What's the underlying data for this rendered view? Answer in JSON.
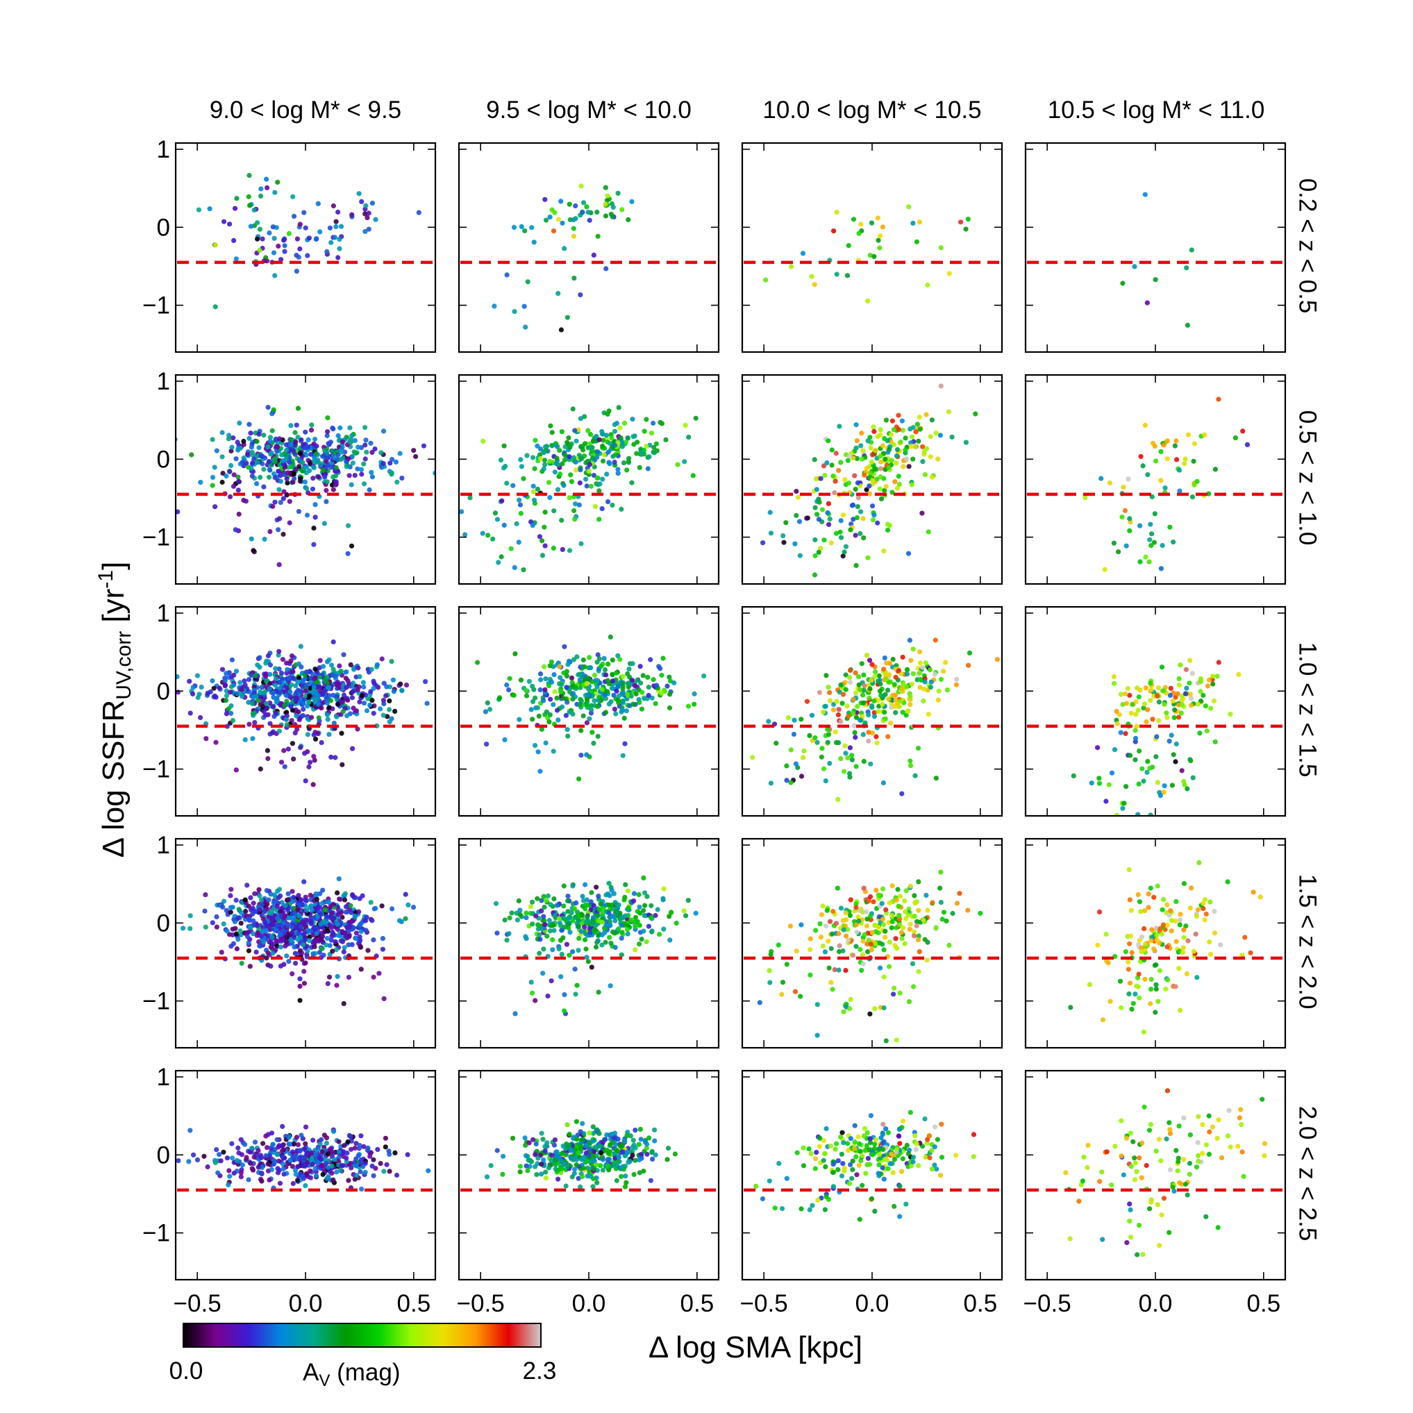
{
  "chart_data": {
    "type": "scatter",
    "layout": "5 rows x 4 columns grid of scatter panels",
    "xlabel": "Δ log SMA [kpc]",
    "ylabel": "Δ log SSFR_UV,corr [yr^-1]",
    "ylabel_parts": {
      "main": "Δ log SSFR",
      "sub": "UV,corr",
      "post": " [yr",
      "sup": "-1",
      "end": "]"
    },
    "xlim": [
      -0.6,
      0.6
    ],
    "ylim": [
      -1.6,
      1.08
    ],
    "xticks": [
      -0.5,
      0.0,
      0.5
    ],
    "xtick_labels": [
      "−0.5",
      "0.0",
      "0.5"
    ],
    "yticks": [
      -1,
      0,
      1
    ],
    "ytick_labels": [
      "−1",
      "0",
      "1"
    ],
    "threshold_line": {
      "y": -0.45,
      "color": "#e8000b",
      "style": "dashed"
    },
    "mass_bins": [
      "9.0 < log M* < 9.5",
      "9.5 < log M* < 10.0",
      "10.0 < log M* < 10.5",
      "10.5 < log M* < 11.0"
    ],
    "redshift_bins": [
      "0.2 < z < 0.5",
      "0.5 < z < 1.0",
      "1.0 < z < 1.5",
      "1.5 < z < 2.0",
      "2.0 < z < 2.5"
    ],
    "colorbar": {
      "label": "A_V (mag)",
      "label_main": "A",
      "label_sub": "V",
      "label_post": "  (mag)",
      "min": 0.0,
      "max": 2.3,
      "min_label": "0.0",
      "max_label": "2.3",
      "colormap": "nipy_spectral"
    },
    "colormap_stops": [
      "#000000",
      "#7a0090",
      "#3a1cd6",
      "#0088dd",
      "#00a88c",
      "#009b00",
      "#00d200",
      "#98f800",
      "#ece000",
      "#ff9900",
      "#e60000",
      "#cccccc"
    ],
    "panel_summary_note": "Each panel's point cloud is summarized as clusters (points drawn: n) with center cx, cy, spread sx, sy, correlation slope, and mean A_V av with scatter avs (mag).",
    "panels": [
      {
        "row": 0,
        "col": 0,
        "clusters": [
          {
            "n": 60,
            "cx": 0.08,
            "cy": -0.05,
            "sx": 0.16,
            "sy": 0.22,
            "slope": 0.9,
            "av": 0.45,
            "avs": 0.2
          },
          {
            "n": 40,
            "cx": -0.25,
            "cy": 0.0,
            "sx": 0.14,
            "sy": 0.45,
            "slope": 0.3,
            "av": 0.8,
            "avs": 0.35
          }
        ]
      },
      {
        "row": 0,
        "col": 1,
        "clusters": [
          {
            "n": 45,
            "cx": 0.0,
            "cy": 0.2,
            "sx": 0.12,
            "sy": 0.14,
            "slope": 0.4,
            "av": 1.0,
            "avs": 0.35
          },
          {
            "n": 18,
            "cx": -0.1,
            "cy": -0.4,
            "sx": 0.12,
            "sy": 0.4,
            "slope": 1.2,
            "av": 0.75,
            "avs": 0.3
          }
        ]
      },
      {
        "row": 0,
        "col": 2,
        "clusters": [
          {
            "n": 35,
            "cx": 0.0,
            "cy": -0.15,
            "sx": 0.17,
            "sy": 0.42,
            "slope": 0.5,
            "av": 1.2,
            "avs": 0.4
          }
        ]
      },
      {
        "row": 0,
        "col": 3,
        "clusters": [
          {
            "n": 9,
            "cx": 0.0,
            "cy": -0.5,
            "sx": 0.13,
            "sy": 0.45,
            "slope": 1.5,
            "av": 0.9,
            "avs": 0.3
          }
        ]
      },
      {
        "row": 1,
        "col": 0,
        "clusters": [
          {
            "n": 440,
            "cx": -0.02,
            "cy": 0.03,
            "sx": 0.2,
            "sy": 0.2,
            "slope": 0.0,
            "av": 0.6,
            "avs": 0.28
          },
          {
            "n": 70,
            "cx": -0.12,
            "cy": -0.55,
            "sx": 0.2,
            "sy": 0.38,
            "slope": 0.2,
            "av": 0.38,
            "avs": 0.22
          }
        ]
      },
      {
        "row": 1,
        "col": 1,
        "clusters": [
          {
            "n": 230,
            "cx": 0.03,
            "cy": 0.1,
            "sx": 0.18,
            "sy": 0.2,
            "slope": 0.3,
            "av": 1.0,
            "avs": 0.28
          },
          {
            "n": 80,
            "cx": -0.2,
            "cy": -0.6,
            "sx": 0.2,
            "sy": 0.35,
            "slope": 0.7,
            "av": 0.8,
            "avs": 0.28
          }
        ]
      },
      {
        "row": 1,
        "col": 2,
        "clusters": [
          {
            "n": 200,
            "cx": 0.05,
            "cy": 0.0,
            "sx": 0.15,
            "sy": 0.25,
            "slope": 0.9,
            "av": 1.4,
            "avs": 0.5
          },
          {
            "n": 70,
            "cx": -0.15,
            "cy": -0.8,
            "sx": 0.18,
            "sy": 0.35,
            "slope": 0.5,
            "av": 0.9,
            "avs": 0.4
          }
        ]
      },
      {
        "row": 1,
        "col": 3,
        "clusters": [
          {
            "n": 35,
            "cx": 0.12,
            "cy": 0.1,
            "sx": 0.13,
            "sy": 0.2,
            "slope": 0.5,
            "av": 1.55,
            "avs": 0.35
          },
          {
            "n": 35,
            "cx": -0.05,
            "cy": -0.85,
            "sx": 0.18,
            "sy": 0.38,
            "slope": 0.8,
            "av": 0.95,
            "avs": 0.35
          }
        ]
      },
      {
        "row": 2,
        "col": 0,
        "clusters": [
          {
            "n": 650,
            "cx": -0.02,
            "cy": 0.0,
            "sx": 0.2,
            "sy": 0.2,
            "slope": 0.0,
            "av": 0.5,
            "avs": 0.25
          },
          {
            "n": 60,
            "cx": -0.08,
            "cy": -0.6,
            "sx": 0.18,
            "sy": 0.3,
            "slope": 0.0,
            "av": 0.3,
            "avs": 0.18
          }
        ]
      },
      {
        "row": 2,
        "col": 1,
        "clusters": [
          {
            "n": 340,
            "cx": 0.0,
            "cy": 0.03,
            "sx": 0.18,
            "sy": 0.2,
            "slope": 0.1,
            "av": 0.9,
            "avs": 0.3
          },
          {
            "n": 25,
            "cx": -0.12,
            "cy": -0.6,
            "sx": 0.2,
            "sy": 0.3,
            "slope": 0.3,
            "av": 0.8,
            "avs": 0.25
          }
        ]
      },
      {
        "row": 2,
        "col": 2,
        "clusters": [
          {
            "n": 260,
            "cx": 0.05,
            "cy": 0.0,
            "sx": 0.16,
            "sy": 0.22,
            "slope": 0.7,
            "av": 1.45,
            "avs": 0.45
          },
          {
            "n": 60,
            "cx": -0.2,
            "cy": -0.8,
            "sx": 0.18,
            "sy": 0.35,
            "slope": 0.3,
            "av": 1.0,
            "avs": 0.4
          }
        ]
      },
      {
        "row": 2,
        "col": 3,
        "clusters": [
          {
            "n": 110,
            "cx": 0.05,
            "cy": -0.05,
            "sx": 0.15,
            "sy": 0.2,
            "slope": 0.6,
            "av": 1.6,
            "avs": 0.4
          },
          {
            "n": 60,
            "cx": -0.05,
            "cy": -0.95,
            "sx": 0.15,
            "sy": 0.35,
            "slope": 0.5,
            "av": 0.95,
            "avs": 0.35
          }
        ]
      },
      {
        "row": 3,
        "col": 0,
        "clusters": [
          {
            "n": 750,
            "cx": -0.03,
            "cy": 0.0,
            "sx": 0.18,
            "sy": 0.2,
            "slope": 0.0,
            "av": 0.45,
            "avs": 0.22
          },
          {
            "n": 50,
            "cx": 0.0,
            "cy": -0.55,
            "sx": 0.22,
            "sy": 0.25,
            "slope": 0.0,
            "av": 0.25,
            "avs": 0.15
          }
        ]
      },
      {
        "row": 3,
        "col": 1,
        "clusters": [
          {
            "n": 380,
            "cx": 0.02,
            "cy": 0.05,
            "sx": 0.17,
            "sy": 0.18,
            "slope": 0.1,
            "av": 0.9,
            "avs": 0.3
          },
          {
            "n": 20,
            "cx": -0.1,
            "cy": -0.8,
            "sx": 0.15,
            "sy": 0.25,
            "slope": 0.0,
            "av": 0.8,
            "avs": 0.3
          }
        ]
      },
      {
        "row": 3,
        "col": 2,
        "clusters": [
          {
            "n": 230,
            "cx": 0.05,
            "cy": 0.0,
            "sx": 0.17,
            "sy": 0.25,
            "slope": 0.4,
            "av": 1.55,
            "avs": 0.45
          },
          {
            "n": 40,
            "cx": -0.1,
            "cy": -0.75,
            "sx": 0.2,
            "sy": 0.3,
            "slope": 0.0,
            "av": 1.2,
            "avs": 0.4
          }
        ]
      },
      {
        "row": 3,
        "col": 3,
        "clusters": [
          {
            "n": 130,
            "cx": 0.05,
            "cy": -0.1,
            "sx": 0.16,
            "sy": 0.3,
            "slope": 0.7,
            "av": 1.7,
            "avs": 0.35
          },
          {
            "n": 30,
            "cx": -0.05,
            "cy": -0.85,
            "sx": 0.15,
            "sy": 0.25,
            "slope": 0.5,
            "av": 1.3,
            "avs": 0.35
          }
        ]
      },
      {
        "row": 4,
        "col": 0,
        "clusters": [
          {
            "n": 430,
            "cx": -0.02,
            "cy": -0.05,
            "sx": 0.2,
            "sy": 0.15,
            "slope": 0.0,
            "av": 0.4,
            "avs": 0.2
          }
        ]
      },
      {
        "row": 4,
        "col": 1,
        "clusters": [
          {
            "n": 400,
            "cx": 0.0,
            "cy": 0.0,
            "sx": 0.16,
            "sy": 0.16,
            "slope": 0.1,
            "av": 0.8,
            "avs": 0.3
          }
        ]
      },
      {
        "row": 4,
        "col": 2,
        "clusters": [
          {
            "n": 200,
            "cx": 0.03,
            "cy": 0.05,
            "sx": 0.15,
            "sy": 0.18,
            "slope": 0.2,
            "av": 1.25,
            "avs": 0.45
          },
          {
            "n": 40,
            "cx": -0.05,
            "cy": -0.5,
            "sx": 0.2,
            "sy": 0.25,
            "slope": 0.0,
            "av": 1.0,
            "avs": 0.4
          }
        ]
      },
      {
        "row": 4,
        "col": 3,
        "clusters": [
          {
            "n": 90,
            "cx": 0.05,
            "cy": 0.0,
            "sx": 0.2,
            "sy": 0.28,
            "slope": 0.4,
            "av": 1.55,
            "avs": 0.45
          },
          {
            "n": 25,
            "cx": -0.05,
            "cy": -0.7,
            "sx": 0.2,
            "sy": 0.3,
            "slope": 0.0,
            "av": 1.1,
            "avs": 0.4
          }
        ]
      }
    ]
  }
}
